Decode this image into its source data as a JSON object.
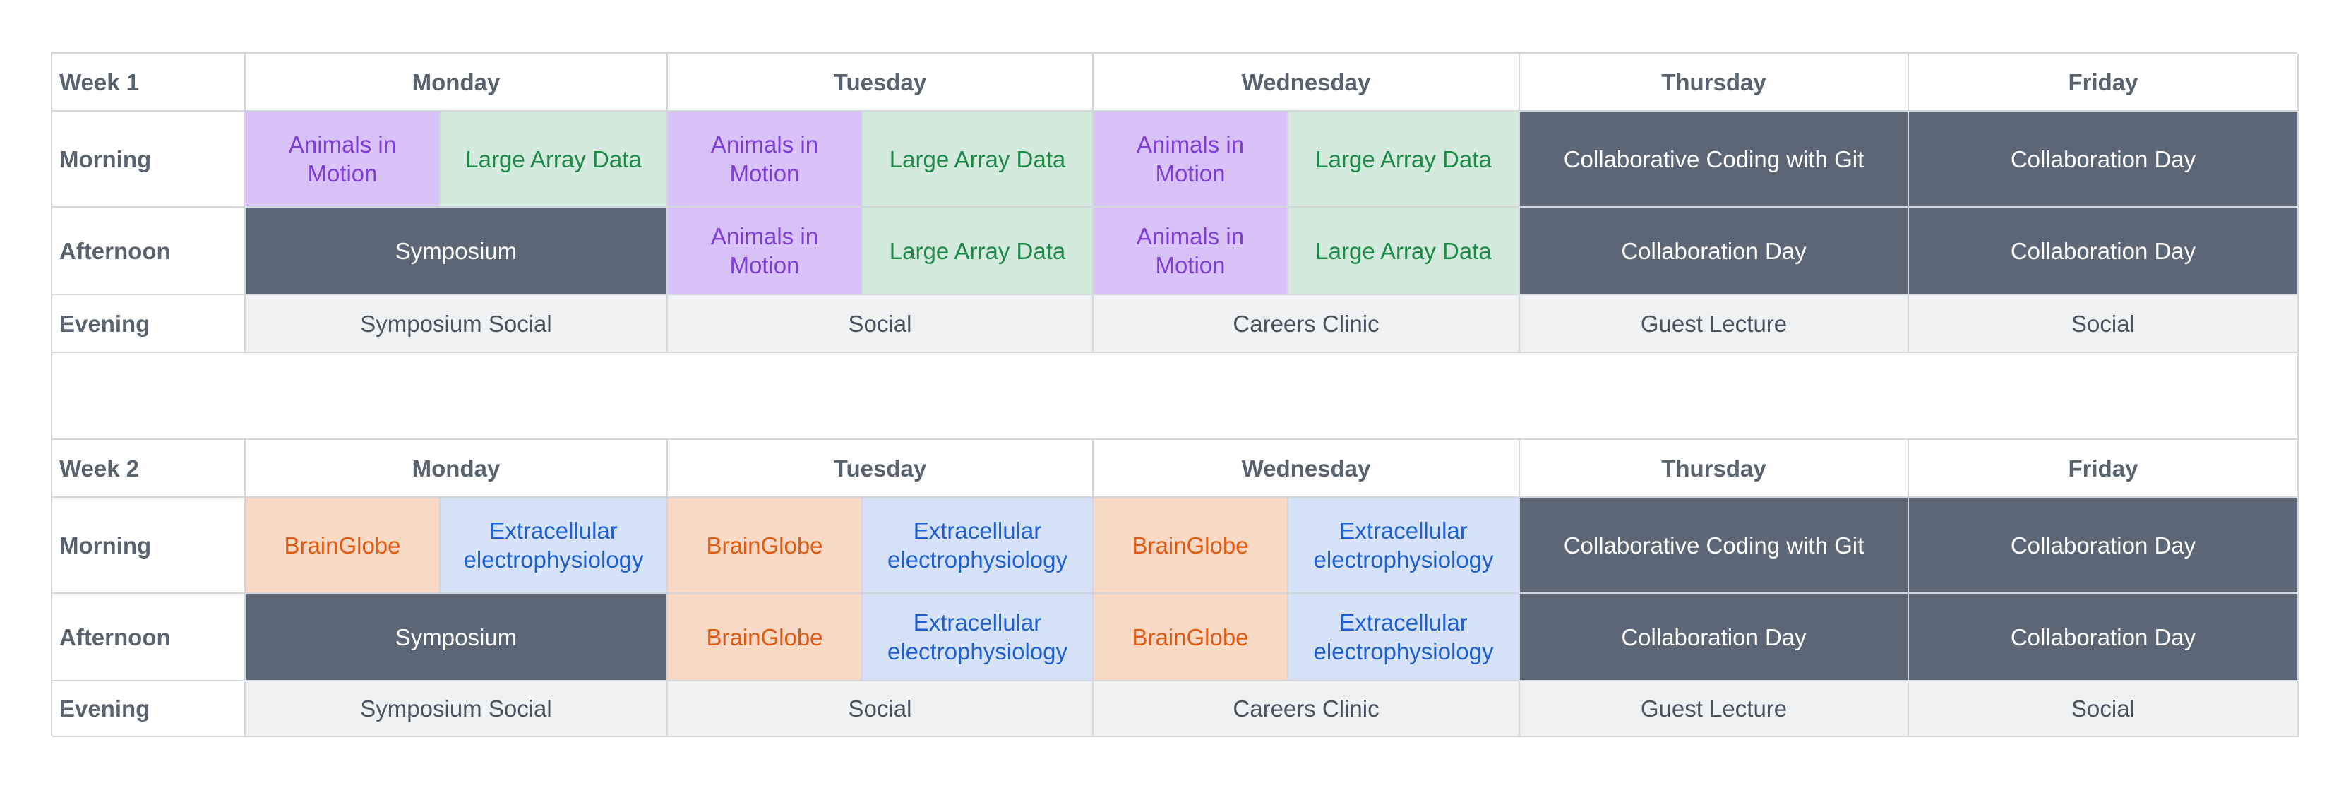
{
  "days": [
    "Monday",
    "Tuesday",
    "Wednesday",
    "Thursday",
    "Friday"
  ],
  "periods": {
    "morning": "Morning",
    "afternoon": "Afternoon",
    "evening": "Evening"
  },
  "weeks": [
    {
      "label": "Week 1",
      "track_a": "Animals in Motion",
      "track_b": "Large Array Data",
      "symposium": "Symposium",
      "collab_git": "Collaborative Coding with Git",
      "collab_day": "Collaboration Day",
      "evening": [
        "Symposium Social",
        "Social",
        "Careers Clinic",
        "Guest Lecture",
        "Social"
      ]
    },
    {
      "label": "Week 2",
      "track_a": "BrainGlobe",
      "track_b": "Extracellular electrophysiology",
      "symposium": "Symposium",
      "collab_git": "Collaborative Coding with Git",
      "collab_day": "Collaboration Day",
      "evening": [
        "Symposium Social",
        "Social",
        "Careers Clinic",
        "Guest Lecture",
        "Social"
      ]
    }
  ],
  "colors": {
    "track_a_week1": "#d9c2f8",
    "track_b_week1": "#d4eadd",
    "track_a_week2": "#f7d9c6",
    "track_b_week2": "#d5e2f8",
    "plenary": "#5b6676",
    "evening": "#eff1f3",
    "border": "#d3d6da"
  }
}
